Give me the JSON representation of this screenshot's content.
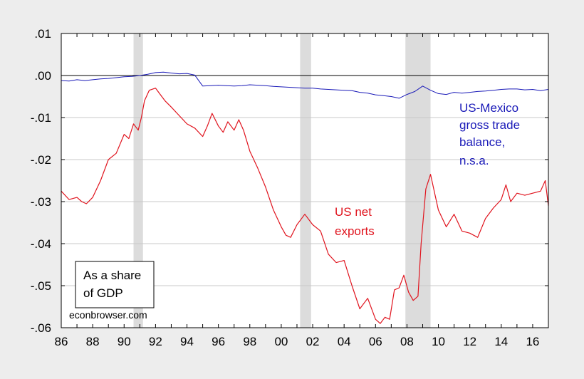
{
  "chart_data": {
    "type": "line",
    "title": "",
    "xlabel": "",
    "ylabel": "",
    "xlim": [
      1986.0,
      2017.0
    ],
    "ylim": [
      -0.06,
      0.01
    ],
    "grid": true,
    "y_ticks": [
      0.01,
      0.0,
      -0.01,
      -0.02,
      -0.03,
      -0.04,
      -0.05,
      -0.06
    ],
    "y_tick_labels": [
      ".01",
      ".00",
      "-.01",
      "-.02",
      "-.03",
      "-.04",
      "-.05",
      "-.06"
    ],
    "x_ticks": [
      1986,
      1988,
      1990,
      1992,
      1994,
      1996,
      1998,
      2000,
      2002,
      2004,
      2006,
      2008,
      2010,
      2012,
      2014,
      2016
    ],
    "x_tick_labels": [
      "86",
      "88",
      "90",
      "92",
      "94",
      "96",
      "98",
      "00",
      "02",
      "04",
      "06",
      "08",
      "10",
      "12",
      "14",
      "16"
    ],
    "recessions": [
      [
        1990.6,
        1991.2
      ],
      [
        2001.2,
        2001.9
      ],
      [
        2007.9,
        2009.5
      ]
    ],
    "zero_line": 0.0,
    "series": [
      {
        "key": "mexico",
        "color": "#1a1ab8",
        "x": [
          1986.0,
          1986.5,
          1987.0,
          1987.5,
          1988.0,
          1988.5,
          1989.0,
          1989.5,
          1990.0,
          1990.5,
          1991.0,
          1991.5,
          1992.0,
          1992.5,
          1993.0,
          1993.5,
          1994.0,
          1994.5,
          1995.0,
          1995.5,
          1996.0,
          1996.5,
          1997.0,
          1997.5,
          1998.0,
          1998.5,
          1999.0,
          1999.5,
          2000.0,
          2000.5,
          2001.0,
          2001.5,
          2002.0,
          2002.5,
          2003.0,
          2003.5,
          2004.0,
          2004.5,
          2005.0,
          2005.5,
          2006.0,
          2006.5,
          2007.0,
          2007.5,
          2008.0,
          2008.5,
          2009.0,
          2009.5,
          2010.0,
          2010.5,
          2011.0,
          2011.5,
          2012.0,
          2012.5,
          2013.0,
          2013.5,
          2014.0,
          2014.5,
          2015.0,
          2015.5,
          2016.0,
          2016.5,
          2017.0
        ],
        "y": [
          -0.0012,
          -0.0013,
          -0.001,
          -0.0012,
          -0.001,
          -0.0008,
          -0.0007,
          -0.0005,
          -0.0003,
          -0.0002,
          0.0,
          0.0003,
          0.0007,
          0.0008,
          0.0006,
          0.0004,
          0.0005,
          0.0001,
          -0.0025,
          -0.0024,
          -0.0023,
          -0.0024,
          -0.0025,
          -0.0024,
          -0.0022,
          -0.0023,
          -0.0024,
          -0.0026,
          -0.0027,
          -0.0028,
          -0.0029,
          -0.003,
          -0.003,
          -0.0032,
          -0.0033,
          -0.0034,
          -0.0035,
          -0.0036,
          -0.004,
          -0.0042,
          -0.0046,
          -0.0048,
          -0.005,
          -0.0054,
          -0.0045,
          -0.0038,
          -0.0025,
          -0.0035,
          -0.0043,
          -0.0045,
          -0.004,
          -0.0042,
          -0.004,
          -0.0038,
          -0.0037,
          -0.0035,
          -0.0033,
          -0.0032,
          -0.0032,
          -0.0034,
          -0.0033,
          -0.0036,
          -0.0033
        ]
      },
      {
        "key": "netexports",
        "color": "#e0141e",
        "x": [
          1986.0,
          1986.5,
          1987.0,
          1987.3,
          1987.6,
          1988.0,
          1988.5,
          1989.0,
          1989.5,
          1990.0,
          1990.3,
          1990.6,
          1990.9,
          1991.1,
          1991.3,
          1991.6,
          1992.0,
          1992.3,
          1992.6,
          1993.0,
          1993.5,
          1994.0,
          1994.5,
          1995.0,
          1995.3,
          1995.6,
          1996.0,
          1996.3,
          1996.6,
          1997.0,
          1997.3,
          1997.6,
          1998.0,
          1998.5,
          1999.0,
          1999.5,
          2000.0,
          2000.3,
          2000.6,
          2001.0,
          2001.5,
          2002.0,
          2002.5,
          2003.0,
          2003.5,
          2004.0,
          2004.5,
          2005.0,
          2005.5,
          2006.0,
          2006.3,
          2006.6,
          2006.9,
          2007.2,
          2007.5,
          2007.8,
          2008.1,
          2008.4,
          2008.7,
          2008.9,
          2009.2,
          2009.5,
          2010.0,
          2010.5,
          2011.0,
          2011.5,
          2012.0,
          2012.5,
          2013.0,
          2013.5,
          2014.0,
          2014.3,
          2014.6,
          2015.0,
          2015.5,
          2016.0,
          2016.5,
          2016.8,
          2017.0
        ],
        "y": [
          -0.0275,
          -0.0295,
          -0.029,
          -0.03,
          -0.0305,
          -0.029,
          -0.025,
          -0.02,
          -0.0185,
          -0.014,
          -0.015,
          -0.0115,
          -0.013,
          -0.01,
          -0.006,
          -0.0035,
          -0.003,
          -0.0045,
          -0.006,
          -0.0075,
          -0.0095,
          -0.0115,
          -0.0125,
          -0.0145,
          -0.012,
          -0.009,
          -0.012,
          -0.0135,
          -0.011,
          -0.013,
          -0.0105,
          -0.013,
          -0.018,
          -0.022,
          -0.0265,
          -0.032,
          -0.036,
          -0.038,
          -0.0385,
          -0.0355,
          -0.033,
          -0.0355,
          -0.037,
          -0.0425,
          -0.0445,
          -0.044,
          -0.05,
          -0.0555,
          -0.053,
          -0.058,
          -0.059,
          -0.0575,
          -0.058,
          -0.051,
          -0.0505,
          -0.0475,
          -0.0515,
          -0.0535,
          -0.0525,
          -0.04,
          -0.027,
          -0.0235,
          -0.032,
          -0.036,
          -0.033,
          -0.037,
          -0.0375,
          -0.0385,
          -0.034,
          -0.0315,
          -0.0295,
          -0.026,
          -0.03,
          -0.028,
          -0.0285,
          -0.028,
          -0.0275,
          -0.025,
          -0.031
        ]
      }
    ]
  },
  "annotations": {
    "mexico_label": [
      "US-Mexico",
      "gross trade",
      "balance,",
      "n.s.a."
    ],
    "netexports_label": [
      "US net",
      "exports"
    ],
    "box_label": [
      "As a share",
      "of GDP"
    ],
    "credit": "econbrowser.com"
  },
  "colors": {
    "background": "#ededed",
    "plot_background": "#ffffff",
    "grid": "#c8c8c8",
    "recession": "#dcdcdc",
    "mexico": "#1a1ab8",
    "netexports": "#e0141e"
  }
}
